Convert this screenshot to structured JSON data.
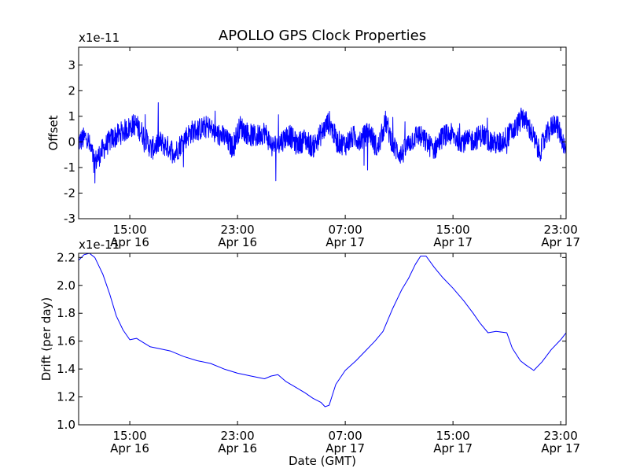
{
  "title": "APOLLO GPS Clock Properties",
  "colors": {
    "series": "#0000ff",
    "axes": "#000000",
    "background": "#ffffff"
  },
  "chart_data": [
    {
      "type": "line",
      "title": "APOLLO GPS Clock Properties",
      "ylabel": "Offset",
      "xlabel": "",
      "y_scale_label": "x1e-11",
      "ylim": [
        -3,
        3.7
      ],
      "yticks": [
        "-3",
        "-2",
        "-1",
        "0",
        "1",
        "2",
        "3"
      ],
      "xlim_hours": [
        11.2,
        47.4
      ],
      "xticks": [
        {
          "hour": 15,
          "label_time": "15:00",
          "label_date": "Apr 16"
        },
        {
          "hour": 23,
          "label_time": "23:00",
          "label_date": "Apr 16"
        },
        {
          "hour": 31,
          "label_time": "07:00",
          "label_date": "Apr 17"
        },
        {
          "hour": 39,
          "label_time": "15:00",
          "label_date": "Apr 17"
        },
        {
          "hour": 47,
          "label_time": "23:00",
          "label_date": "Apr 17"
        }
      ],
      "grid": false,
      "series": [
        {
          "x_hours": [
            11.2,
            11.8,
            12.4,
            13.0,
            13.6,
            14.2,
            14.8,
            15.4,
            16.0,
            16.6,
            17.2,
            17.8,
            18.4,
            19.0,
            19.6,
            20.2,
            20.8,
            21.4,
            22.0,
            22.6,
            23.2,
            23.8,
            24.4,
            25.0,
            25.6,
            26.2,
            26.8,
            27.4,
            28.0,
            28.6,
            29.2,
            29.8,
            30.4,
            31.0,
            31.6,
            32.2,
            32.8,
            33.4,
            34.0,
            34.6,
            35.2,
            35.8,
            36.4,
            37.0,
            37.6,
            38.2,
            38.8,
            39.4,
            40.0,
            40.6,
            41.2,
            41.8,
            42.4,
            43.0,
            43.6,
            44.2,
            44.8,
            45.4,
            46.0,
            46.6,
            47.2,
            47.4
          ],
          "values": [
            0.0,
            0.2,
            -0.8,
            -0.3,
            0.1,
            0.3,
            0.5,
            0.7,
            0.3,
            -0.3,
            0.0,
            -0.2,
            -0.4,
            0.1,
            0.4,
            0.5,
            0.6,
            0.3,
            0.2,
            -0.2,
            0.6,
            0.3,
            0.2,
            0.4,
            -0.2,
            0.0,
            0.3,
            -0.1,
            0.1,
            -0.2,
            0.3,
            0.8,
            0.0,
            -0.1,
            0.2,
            0.1,
            0.4,
            -0.3,
            0.8,
            -0.2,
            -0.5,
            0.0,
            0.3,
            0.0,
            -0.3,
            0.2,
            0.3,
            0.1,
            0.0,
            0.1,
            0.3,
            0.0,
            -0.1,
            0.2,
            0.5,
            1.0,
            0.4,
            -0.4,
            0.3,
            0.8,
            0.0,
            -0.5
          ]
        }
      ]
    },
    {
      "type": "line",
      "title": "",
      "ylabel": "Drift (per day)",
      "xlabel": "Date (GMT)",
      "y_scale_label": "x1e-11",
      "ylim": [
        1.0,
        2.23
      ],
      "yticks": [
        "1.0",
        "1.2",
        "1.4",
        "1.6",
        "1.8",
        "2.0",
        "2.2"
      ],
      "xlim_hours": [
        11.2,
        47.4
      ],
      "xticks": [
        {
          "hour": 15,
          "label_time": "15:00",
          "label_date": "Apr 16"
        },
        {
          "hour": 23,
          "label_time": "23:00",
          "label_date": "Apr 16"
        },
        {
          "hour": 31,
          "label_time": "07:00",
          "label_date": "Apr 17"
        },
        {
          "hour": 39,
          "label_time": "15:00",
          "label_date": "Apr 17"
        },
        {
          "hour": 47,
          "label_time": "23:00",
          "label_date": "Apr 17"
        }
      ],
      "grid": false,
      "series": [
        {
          "x_hours": [
            11.2,
            11.6,
            12.0,
            12.4,
            13.0,
            13.5,
            14.0,
            14.5,
            15.0,
            15.5,
            16.0,
            16.5,
            17.0,
            18.0,
            19.0,
            20.0,
            21.0,
            22.0,
            23.0,
            24.0,
            25.0,
            25.5,
            26.0,
            26.6,
            27.3,
            28.0,
            28.6,
            29.2,
            29.5,
            29.8,
            30.3,
            31.0,
            31.8,
            32.5,
            33.2,
            33.8,
            34.5,
            35.2,
            35.7,
            36.2,
            36.6,
            37.0,
            37.6,
            38.2,
            39.0,
            39.8,
            40.5,
            41.0,
            41.6,
            42.2,
            43.0,
            43.4,
            44.0,
            44.4,
            45.0,
            45.6,
            46.3,
            47.0,
            47.4
          ],
          "values": [
            2.18,
            2.22,
            2.23,
            2.2,
            2.08,
            1.94,
            1.78,
            1.68,
            1.61,
            1.62,
            1.59,
            1.56,
            1.55,
            1.53,
            1.49,
            1.46,
            1.44,
            1.4,
            1.37,
            1.35,
            1.33,
            1.35,
            1.36,
            1.31,
            1.27,
            1.23,
            1.19,
            1.16,
            1.13,
            1.14,
            1.29,
            1.39,
            1.46,
            1.53,
            1.6,
            1.67,
            1.83,
            1.97,
            2.05,
            2.15,
            2.21,
            2.21,
            2.13,
            2.06,
            1.98,
            1.89,
            1.8,
            1.73,
            1.66,
            1.67,
            1.66,
            1.55,
            1.46,
            1.43,
            1.39,
            1.45,
            1.54,
            1.61,
            1.66
          ]
        }
      ]
    }
  ]
}
